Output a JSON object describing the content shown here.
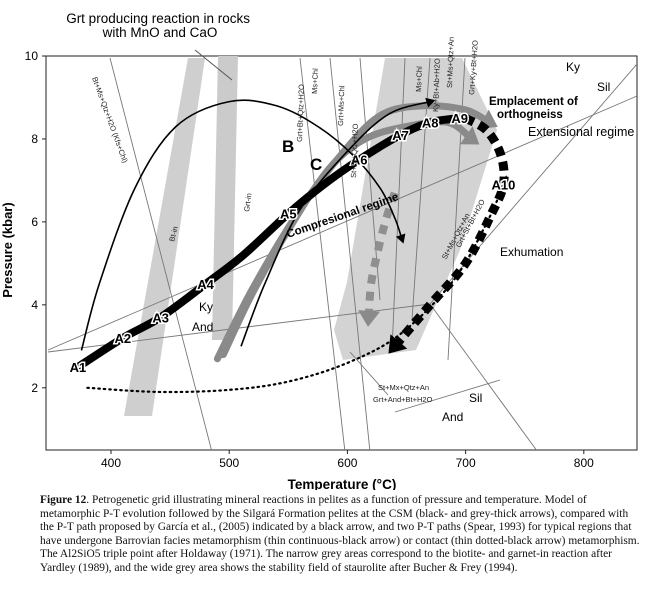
{
  "chart_data": {
    "type": "line",
    "title": "",
    "xlabel": "Temperature (°C)",
    "ylabel": "Pressure (kbar)",
    "xlim": [
      345,
      845
    ],
    "ylim": [
      0.5,
      10
    ],
    "x_ticks": [
      400,
      500,
      600,
      700,
      800
    ],
    "y_ticks": [
      2,
      4,
      6,
      8,
      10
    ],
    "grid": false,
    "top_note": "Grt producing reaction in rocks with MnO and CaO",
    "field_labels": [
      "Ky",
      "Sil",
      "Ky",
      "And",
      "Sil",
      "And"
    ],
    "regime_labels": {
      "extensional": "Extensional regime",
      "compressional": "Compresional regime",
      "emplacement": "Emplacement of orthogneiss",
      "exhumation": "Exhumation"
    },
    "path_labels": [
      "B",
      "C"
    ],
    "reaction_labels": [
      "Bt+Ms+Qtz+H2O (Kfs+Chl)",
      "Grt+Bt+Qtz+H2O",
      "Ms+Chl",
      "St+Bt+Qtz+H2O",
      "Grt+Ms+Chl",
      "Ms+Chl",
      "Ky+Bt+Ab+H2O",
      "St+Ms+Qtz+An",
      "Grt+Ky+Bt+H2O",
      "St+Ms+Qtz+An",
      "Grt+St+Bt+H2O",
      "Bt-in",
      "Grt-in",
      "St+Mx+Qtz+An",
      "Grt+And+Bt+H2O"
    ],
    "series": [
      {
        "name": "Silgará Formation path (CSM)",
        "style": "black-thick",
        "x": [
          372,
          410,
          442,
          480,
          512,
          550,
          580,
          610,
          645,
          670,
          695
        ],
        "y": [
          2.5,
          3.2,
          3.7,
          4.5,
          5.2,
          6.2,
          6.9,
          7.5,
          8.1,
          8.4,
          8.5
        ]
      },
      {
        "name": "Exhumation",
        "style": "black-thick-dashed",
        "x": [
          700,
          718,
          730,
          732,
          722,
          700,
          670,
          640
        ],
        "y": [
          8.5,
          8.2,
          7.6,
          6.9,
          6.2,
          5.0,
          4.0,
          3.0
        ]
      },
      {
        "name": "Grey decompression",
        "style": "grey-thick-dashed",
        "x": [
          640,
          632,
          625,
          620,
          618
        ],
        "y": [
          6.7,
          6.0,
          5.2,
          4.5,
          3.7
        ]
      },
      {
        "name": "B",
        "style": "grey-thick",
        "x": [
          490,
          520,
          560,
          600,
          630,
          665,
          700,
          720
        ],
        "y": [
          2.7,
          4.4,
          6.3,
          7.8,
          8.6,
          8.8,
          8.7,
          8.4
        ]
      },
      {
        "name": "C",
        "style": "grey-thick",
        "x": [
          495,
          520,
          552,
          585,
          615,
          650,
          685,
          705
        ],
        "y": [
          2.8,
          4.3,
          5.9,
          7.3,
          8.0,
          8.3,
          8.4,
          8.0
        ]
      },
      {
        "name": "García et al. (2005)",
        "style": "black-thin-arrow",
        "x": [
          375,
          390,
          420,
          455,
          500,
          540,
          575,
          605,
          628,
          640,
          646
        ],
        "y": [
          2.9,
          4.5,
          6.8,
          8.3,
          8.9,
          8.8,
          8.3,
          7.6,
          6.8,
          6.1,
          5.6
        ]
      },
      {
        "name": "Barrovian",
        "style": "black-thin",
        "x": [
          510,
          530,
          560,
          600,
          635,
          670
        ],
        "y": [
          3.0,
          4.5,
          6.3,
          7.7,
          8.6,
          8.9
        ]
      },
      {
        "name": "Contact",
        "style": "black-thin-dotted",
        "x": [
          380,
          440,
          500,
          550,
          600,
          645,
          690,
          720,
          733
        ],
        "y": [
          2.0,
          1.9,
          1.95,
          2.15,
          2.6,
          3.3,
          4.6,
          6.1,
          7.0
        ]
      }
    ],
    "points": {
      "labels": [
        "A1",
        "A2",
        "A3",
        "A4",
        "A5",
        "A6",
        "A7",
        "A8",
        "A9",
        "A10"
      ],
      "x": [
        372,
        410,
        442,
        480,
        550,
        610,
        645,
        670,
        695,
        732
      ],
      "y": [
        2.5,
        3.2,
        3.7,
        4.5,
        6.2,
        7.5,
        8.1,
        8.4,
        8.5,
        6.9
      ]
    }
  },
  "caption": {
    "label": "Figure 12",
    "text": ". Petrogenetic grid illustrating mineral reactions in pelites as a function of pressure and temperature. Model of metamorphic P-T evolution followed by the Silgará Formation pelites at the CSM (black- and grey-thick arrows), compared with the P-T path proposed by García et al., (2005) indicated by a black arrow, and two P-T paths (Spear, 1993) for typical regions that have undergone Barrovian facies metamorphism (thin continuous-black arrow) or contact (thin dotted-black arrow) metamorphism. The Al2SiO5 triple point after Holdaway (1971). The narrow grey areas correspond to the biotite- and garnet-in reaction after Yardley (1989), and the wide grey area shows the stability field of staurolite after Bucher & Frey (1994)."
  }
}
